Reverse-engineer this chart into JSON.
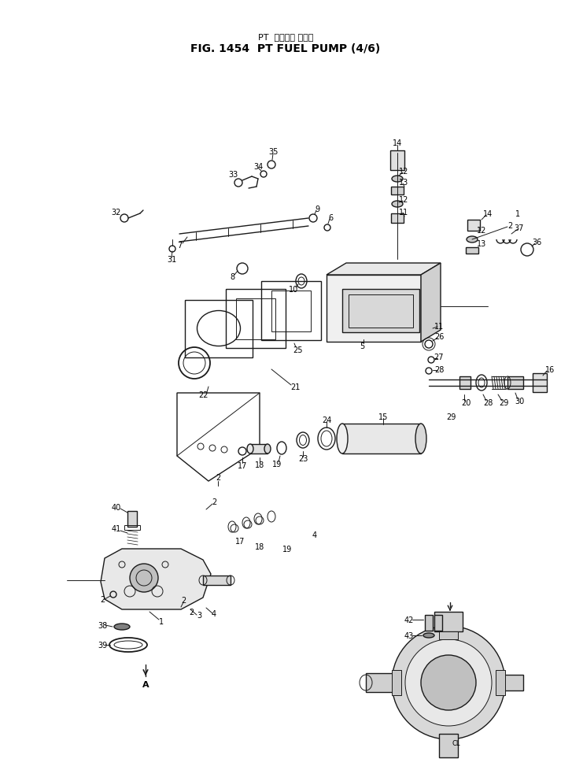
{
  "title_japanese": "PT フェエル ポンプ",
  "title_english": "FIG. 1454  PT FUEL PUMP (4/6)",
  "bg_color": "#ffffff",
  "line_color": "#1a1a1a",
  "fig_width": 7.27,
  "fig_height": 9.79,
  "dpi": 100
}
